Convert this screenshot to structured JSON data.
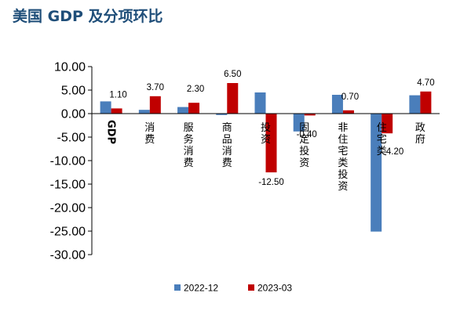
{
  "chart_data": {
    "type": "bar",
    "title": "美国 GDP 及分项环比",
    "xlabel": "",
    "ylabel": "",
    "ylim": [
      -30,
      10
    ],
    "yticks": [
      10,
      5,
      0,
      -5,
      -10,
      -15,
      -20,
      -25,
      -30
    ],
    "ytick_labels": [
      "10.00",
      "5.00",
      "0.00",
      "-5.00",
      "-10.00",
      "-15.00",
      "-20.00",
      "-25.00",
      "-30.00"
    ],
    "categories": [
      "GDP",
      "消费",
      "服务消费",
      "商品消费",
      "投资",
      "固定投资",
      "非住宅类投资",
      "住宅类",
      "政府"
    ],
    "series": [
      {
        "name": "2022-12",
        "color": "#4a7ebb",
        "values": [
          2.6,
          0.8,
          1.4,
          -0.3,
          4.5,
          -3.8,
          4.0,
          -25.1,
          3.9
        ],
        "labeled": false
      },
      {
        "name": "2023-03",
        "color": "#c00000",
        "values": [
          1.1,
          3.7,
          2.3,
          6.5,
          -12.5,
          -0.4,
          0.7,
          -4.2,
          4.7
        ],
        "labeled": true
      }
    ],
    "data_labels": [
      "1.10",
      "3.70",
      "2.30",
      "6.50",
      "-12.50",
      "-0.40",
      "0.70",
      "-4.20",
      "4.70"
    ],
    "grid": false,
    "legend": "bottom"
  }
}
